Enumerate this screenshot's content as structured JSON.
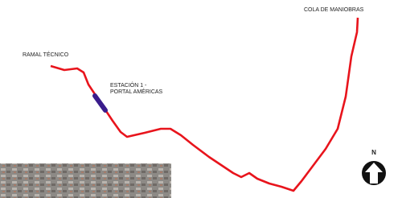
{
  "labels": {
    "ramal": "RAMAL TÉCNICO",
    "station": [
      "ESTACIÓN 1 -",
      "PORTAL AMÉRICAS"
    ],
    "cola": "COLA DE MANIOBRAS"
  },
  "north": "N"
}
